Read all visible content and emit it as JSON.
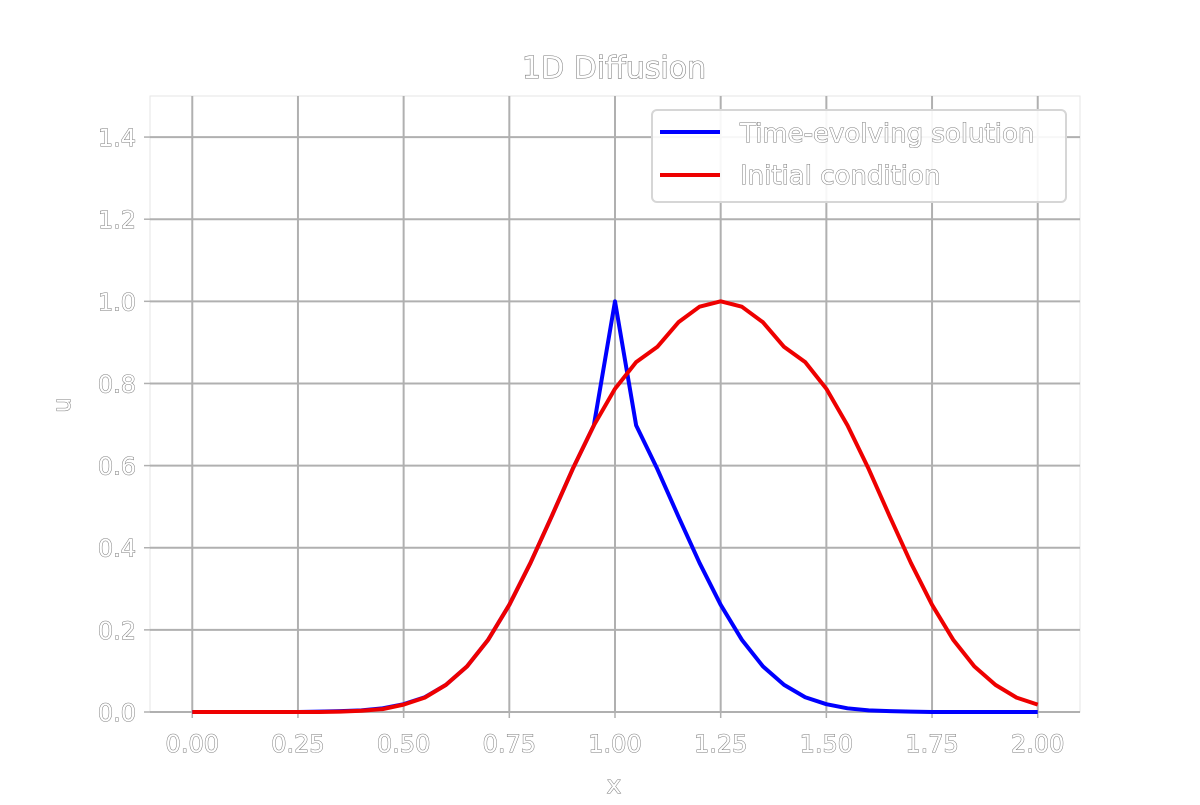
{
  "chart_data": {
    "type": "line",
    "title": "1D Diffusion",
    "xlabel": "x",
    "ylabel": "u",
    "xlim": [
      -0.1,
      2.1
    ],
    "ylim": [
      0,
      1.5
    ],
    "xticks": [
      "0.00",
      "0.25",
      "0.50",
      "0.75",
      "1.00",
      "1.25",
      "1.50",
      "1.75",
      "2.00"
    ],
    "yticks": [
      "0.0",
      "0.2",
      "0.4",
      "0.6",
      "0.8",
      "1.0",
      "1.2",
      "1.4"
    ],
    "grid": true,
    "legend_position": "top-right",
    "x": [
      0.0,
      0.05,
      0.1,
      0.15,
      0.2,
      0.25,
      0.3,
      0.35,
      0.4,
      0.45,
      0.5,
      0.55,
      0.6,
      0.65,
      0.7,
      0.75,
      0.8,
      0.85,
      0.9,
      0.95,
      1.0,
      1.05,
      1.1,
      1.15,
      1.2,
      1.25,
      1.3,
      1.35,
      1.4,
      1.45,
      1.5,
      1.55,
      1.6,
      1.65,
      1.7,
      1.75,
      1.8,
      1.85,
      1.9,
      1.95,
      2.0
    ],
    "series": [
      {
        "name": "Time-evolving solution",
        "color": "#0000ff",
        "values": [
          0.0,
          0.0,
          0.0,
          0.0,
          0.0,
          0.0,
          0.001,
          0.002,
          0.004,
          0.009,
          0.019,
          0.036,
          0.066,
          0.111,
          0.176,
          0.261,
          0.363,
          0.476,
          0.592,
          0.698,
          1.0,
          0.698,
          0.592,
          0.476,
          0.363,
          0.261,
          0.176,
          0.111,
          0.066,
          0.036,
          0.019,
          0.009,
          0.004,
          0.002,
          0.001,
          0.0,
          0.0,
          0.0,
          0.0,
          0.0,
          0.0
        ]
      },
      {
        "name": "Initial condition",
        "color": "#ee0000",
        "values": [
          0.0,
          0.0,
          0.0,
          0.0,
          0.0,
          0.0,
          0.0,
          0.001,
          0.003,
          0.007,
          0.018,
          0.035,
          0.066,
          0.111,
          0.176,
          0.261,
          0.363,
          0.476,
          0.592,
          0.698,
          0.787,
          0.852,
          0.889,
          0.949,
          0.987,
          1.0,
          0.987,
          0.949,
          0.889,
          0.852,
          0.787,
          0.698,
          0.592,
          0.476,
          0.363,
          0.261,
          0.176,
          0.111,
          0.066,
          0.035,
          0.018
        ]
      }
    ]
  }
}
